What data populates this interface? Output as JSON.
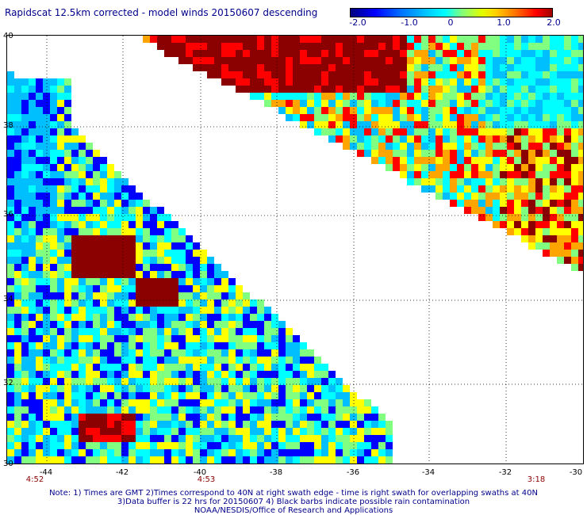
{
  "title": "Rapidscat 12.5km corrected - model winds 20150607 descending",
  "colorbar": {
    "labels": [
      "-2.0",
      "-1.0",
      "0",
      "1.0",
      "2.0"
    ],
    "colors": [
      "#000080",
      "#0000ff",
      "#00bfff",
      "#00ffff",
      "#80ff80",
      "#ffff00",
      "#ffa500",
      "#ff0000",
      "#8b0000"
    ]
  },
  "map": {
    "lat_labels": [
      "40",
      "38",
      "36",
      "34",
      "32",
      "30"
    ],
    "lon_labels": [
      "-44",
      "-42",
      "-40",
      "-38",
      "-36",
      "-34",
      "-32",
      "-30"
    ],
    "time_labels": [
      "4:52",
      "4:53",
      "3:18"
    ]
  },
  "notes": {
    "line1": "Note: 1) Times are GMT 2)Times correspond to 40N at right swath edge - time is right swath for overlapping swaths at 40N",
    "line2": "3)Data buffer is 22 hrs for 20150607 4) Black barbs indicate possible rain contamination",
    "line3": "NOAA/NESDIS/Office of Research and Applications"
  }
}
